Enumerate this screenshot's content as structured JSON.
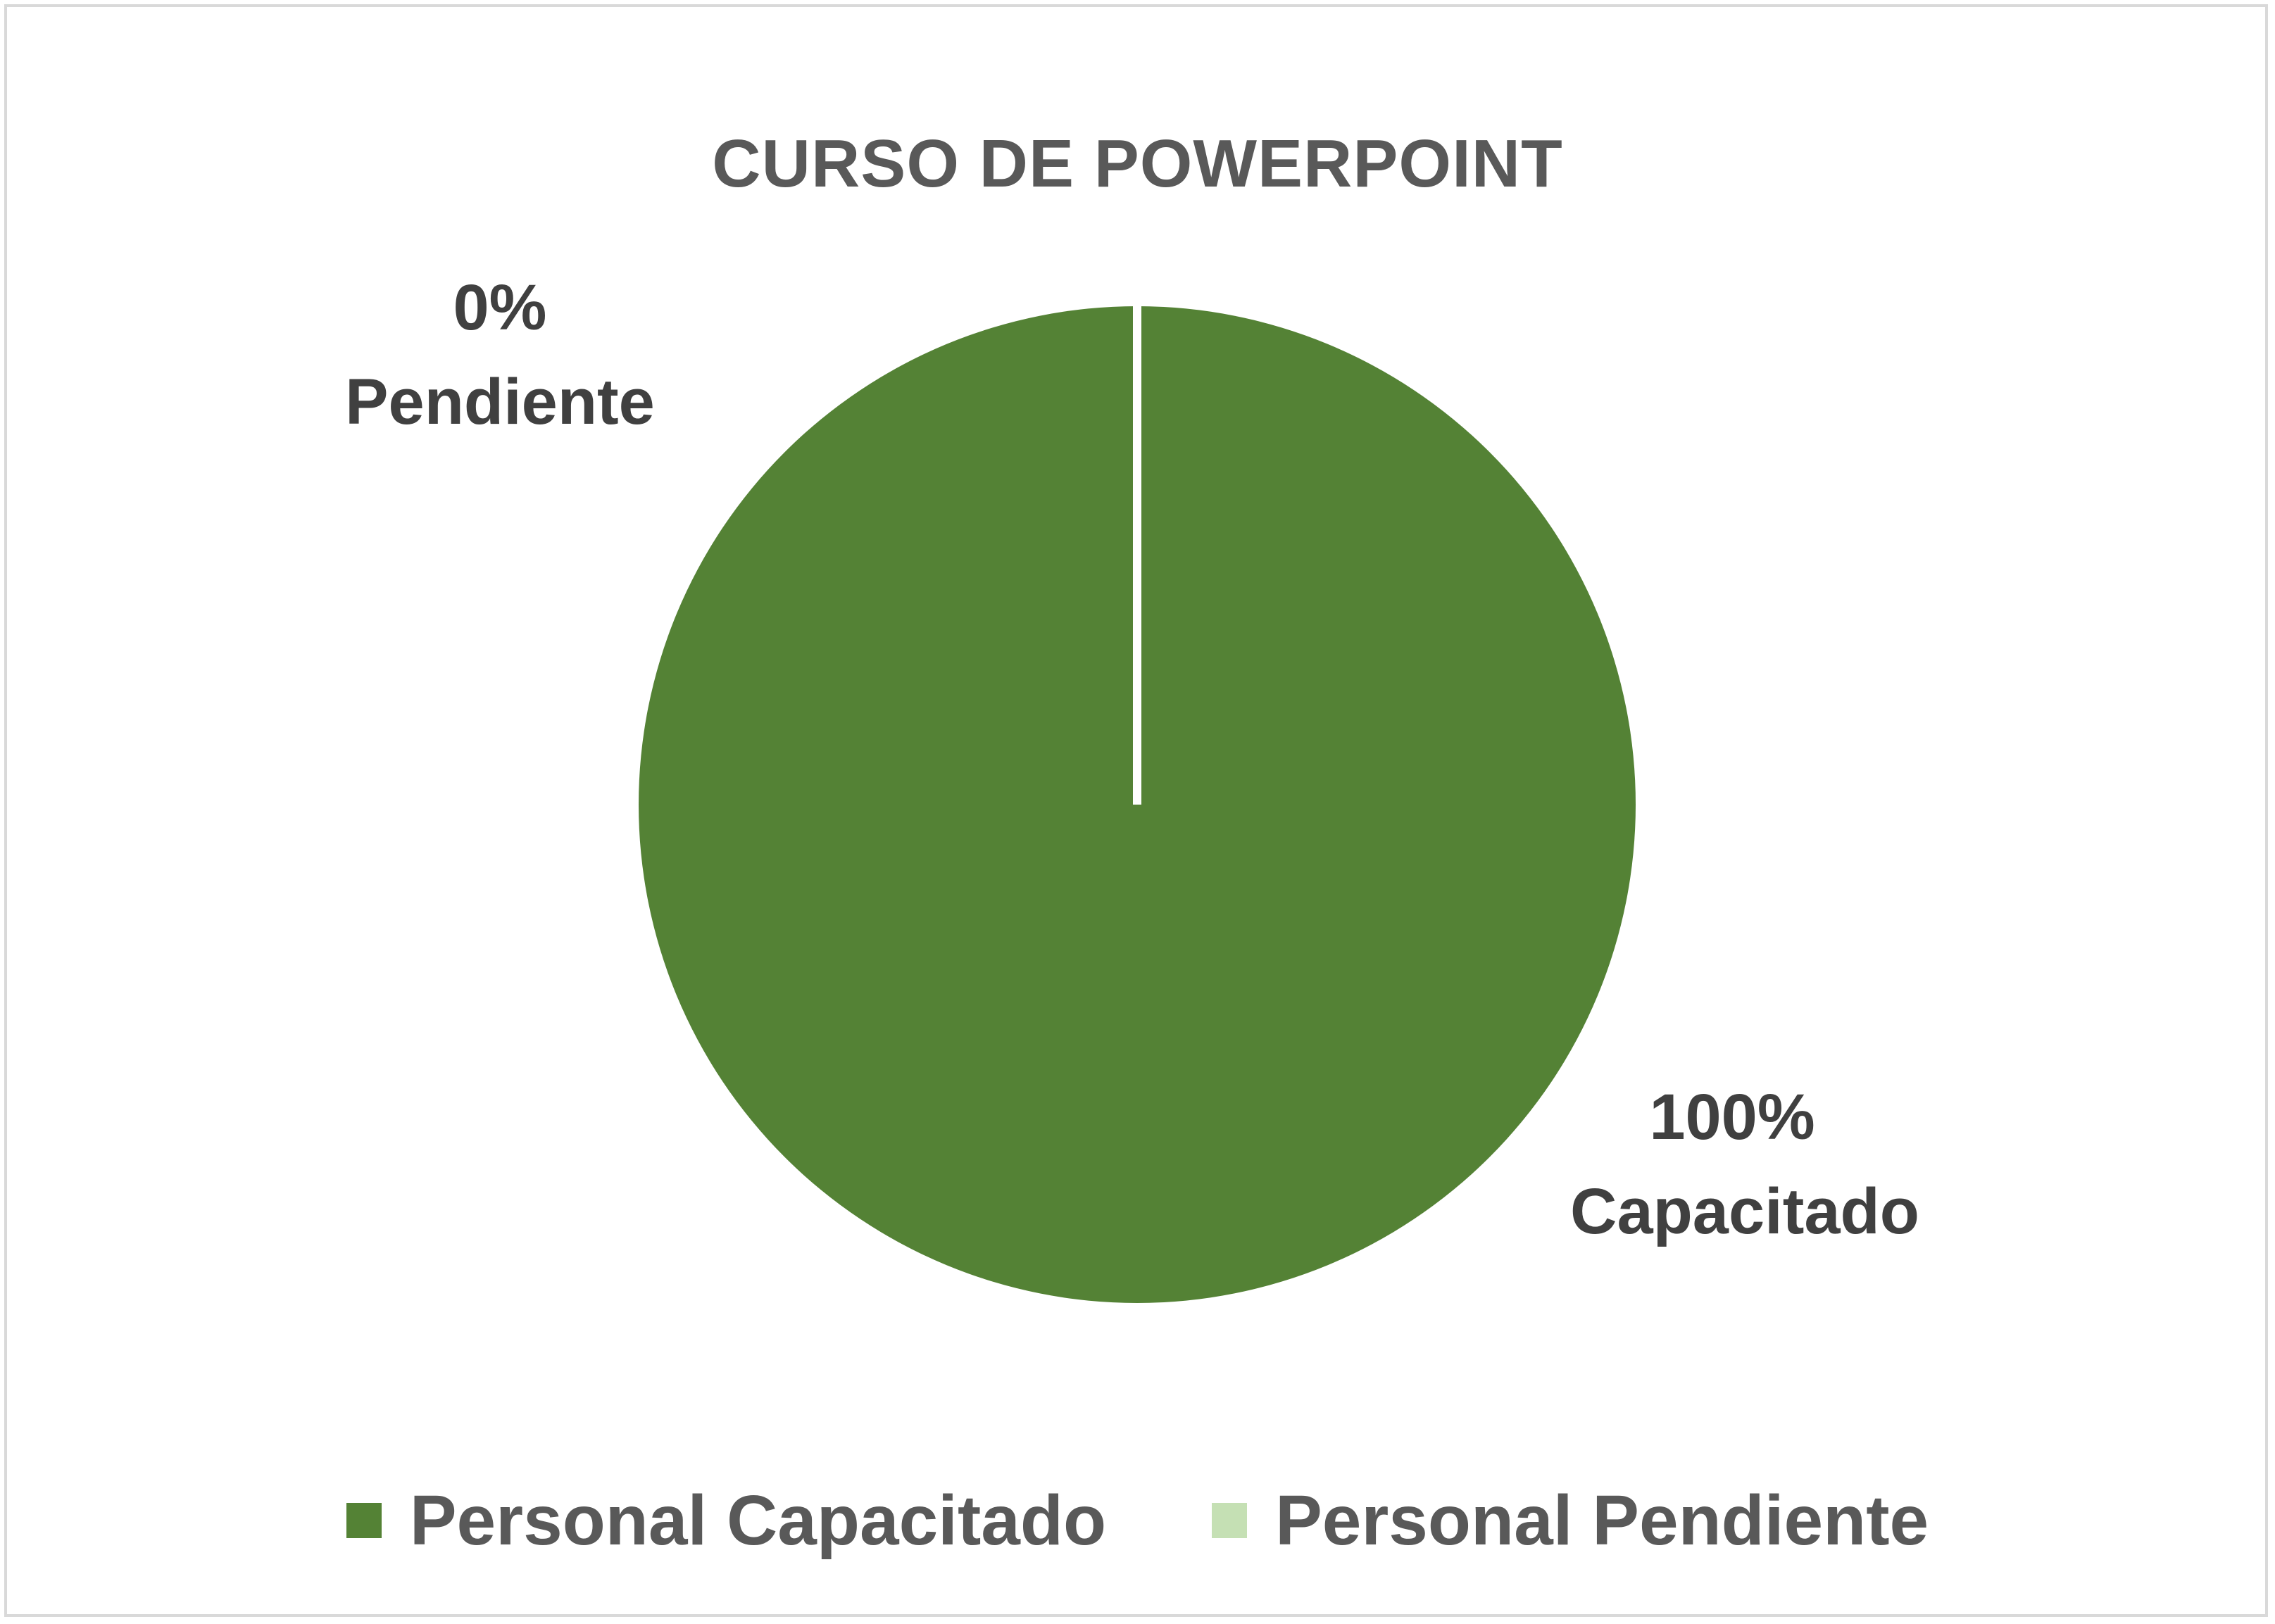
{
  "chart_data": {
    "type": "pie",
    "title": "CURSO DE POWERPOINT",
    "categories": [
      "Personal Capacitado",
      "Personal Pendiente"
    ],
    "values": [
      100,
      0
    ],
    "colors": [
      "#548235",
      "#c5e0b4"
    ],
    "data_labels": [
      {
        "percent": "100%",
        "category": "Capacitado"
      },
      {
        "percent": "0%",
        "category": "Pendiente"
      }
    ],
    "legend_position": "bottom"
  }
}
